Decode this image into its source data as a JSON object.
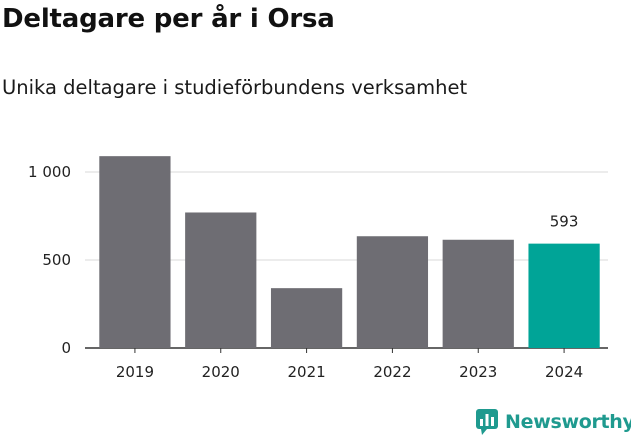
{
  "header": {
    "title": "Deltagare per år i Orsa",
    "subtitle": "Unika deltagare i studieförbundens verksamhet"
  },
  "brand": {
    "name": "Newsworthy",
    "icon": "newsworthy-logo-icon",
    "color": "#1f9a8f"
  },
  "colors": {
    "bar_default": "#6e6d73",
    "bar_highlight": "#00a497",
    "gridline": "#d9d9d9",
    "axis": "#333333"
  },
  "chart_data": {
    "type": "bar",
    "categories": [
      "2019",
      "2020",
      "2021",
      "2022",
      "2023",
      "2024"
    ],
    "values": [
      1090,
      770,
      340,
      635,
      615,
      593
    ],
    "highlight_index": 5,
    "data_labels": [
      {
        "index": 5,
        "text": "593"
      }
    ],
    "title": "Deltagare per år i Orsa",
    "subtitle": "Unika deltagare i studieförbundens verksamhet",
    "xlabel": "",
    "ylabel": "",
    "ylim": [
      0,
      1000
    ],
    "yticks": [
      {
        "value": 0,
        "label": "0"
      },
      {
        "value": 500,
        "label": "500"
      },
      {
        "value": 1000,
        "label": "1 000"
      }
    ],
    "grid": true,
    "legend": "none"
  }
}
